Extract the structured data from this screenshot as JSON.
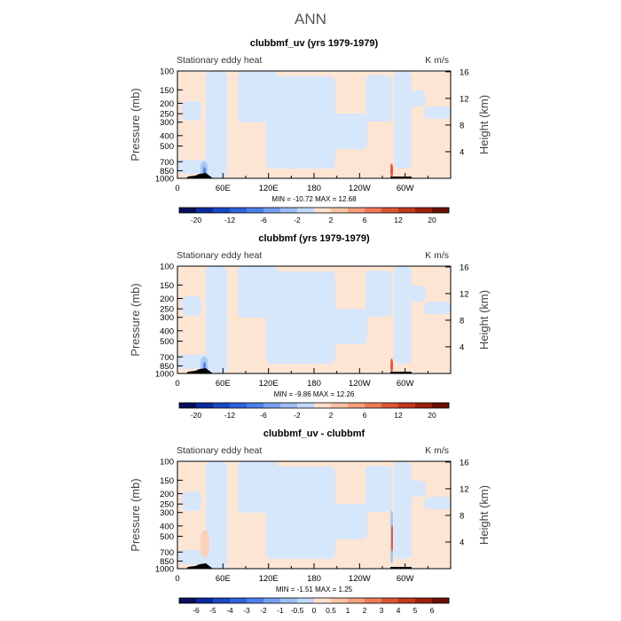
{
  "figure": {
    "title": "ANN",
    "colors": {
      "text": "#000000",
      "title": "#555555",
      "ocean_field": "#fde5d4",
      "pos_light": "#fbd2bb",
      "neg_light": "#d6e6fb",
      "neg_mid": "#a9c8f5",
      "neg_strong": "#4e7de6",
      "pos_strong": "#e05a45",
      "topography": "#000000"
    }
  },
  "chart_data": [
    {
      "type": "heatmap",
      "title": "clubbmf_uv (yrs 1979-1979)",
      "left_label": "Stationary eddy heat",
      "right_label": "K m/s",
      "xlabel": "",
      "ylabel": "Pressure (mb)",
      "ylabel_right": "Height (km)",
      "x_ticks": [
        "0",
        "60E",
        "120E",
        "180",
        "120W",
        "60W"
      ],
      "y_ticks": [
        "100",
        "150",
        "200",
        "250",
        "300",
        "400",
        "500",
        "700",
        "850",
        "1000"
      ],
      "y_right_ticks": [
        "4",
        "8",
        "12",
        "16"
      ],
      "stats": "MIN = -10.72   MAX = 12.68",
      "colorbar_labels": [
        "-20",
        "-12",
        "-6",
        "-2",
        "2",
        "6",
        "12",
        "20"
      ],
      "colorbar_colors": [
        "#08105a",
        "#0c2a9a",
        "#1948c2",
        "#2e63dc",
        "#4e80e8",
        "#769ef0",
        "#9cbcf5",
        "#c3d7f9",
        "#fde0d0",
        "#fbc3a6",
        "#f5a07e",
        "#ec7c58",
        "#dc5636",
        "#c23a1e",
        "#99210e",
        "#6a1004"
      ]
    },
    {
      "type": "heatmap",
      "title": "clubbmf (yrs 1979-1979)",
      "left_label": "Stationary eddy heat",
      "right_label": "K m/s",
      "xlabel": "",
      "ylabel": "Pressure (mb)",
      "ylabel_right": "Height (km)",
      "x_ticks": [
        "0",
        "60E",
        "120E",
        "180",
        "120W",
        "60W"
      ],
      "y_ticks": [
        "100",
        "150",
        "200",
        "250",
        "300",
        "400",
        "500",
        "700",
        "850",
        "1000"
      ],
      "y_right_ticks": [
        "4",
        "8",
        "12",
        "16"
      ],
      "stats": "MIN = -9.86   MAX = 12.26",
      "colorbar_labels": [
        "-20",
        "-12",
        "-6",
        "-2",
        "2",
        "6",
        "12",
        "20"
      ],
      "colorbar_colors": [
        "#08105a",
        "#0c2a9a",
        "#1948c2",
        "#2e63dc",
        "#4e80e8",
        "#769ef0",
        "#9cbcf5",
        "#c3d7f9",
        "#fde0d0",
        "#fbc3a6",
        "#f5a07e",
        "#ec7c58",
        "#dc5636",
        "#c23a1e",
        "#99210e",
        "#6a1004"
      ]
    },
    {
      "type": "heatmap",
      "title": "clubbmf_uv - clubbmf",
      "left_label": "Stationary eddy heat",
      "right_label": "K m/s",
      "xlabel": "",
      "ylabel": "Pressure (mb)",
      "ylabel_right": "Height (km)",
      "x_ticks": [
        "0",
        "60E",
        "120E",
        "180",
        "120W",
        "60W"
      ],
      "y_ticks": [
        "100",
        "150",
        "200",
        "250",
        "300",
        "400",
        "500",
        "700",
        "850",
        "1000"
      ],
      "y_right_ticks": [
        "4",
        "8",
        "12",
        "16"
      ],
      "stats": "MIN = -1.51   MAX = 1.25",
      "colorbar_labels": [
        "-6",
        "-5",
        "-4",
        "-3",
        "-2",
        "-1",
        "-0.5",
        "0",
        "0.5",
        "1",
        "2",
        "3",
        "4",
        "5",
        "6"
      ],
      "colorbar_colors": [
        "#08105a",
        "#0c2a9a",
        "#1948c2",
        "#2e63dc",
        "#4e80e8",
        "#769ef0",
        "#9cbcf5",
        "#c3d7f9",
        "#fde0d0",
        "#fbc3a6",
        "#f5a07e",
        "#ec7c58",
        "#dc5636",
        "#c23a1e",
        "#99210e",
        "#6a1004"
      ]
    }
  ]
}
